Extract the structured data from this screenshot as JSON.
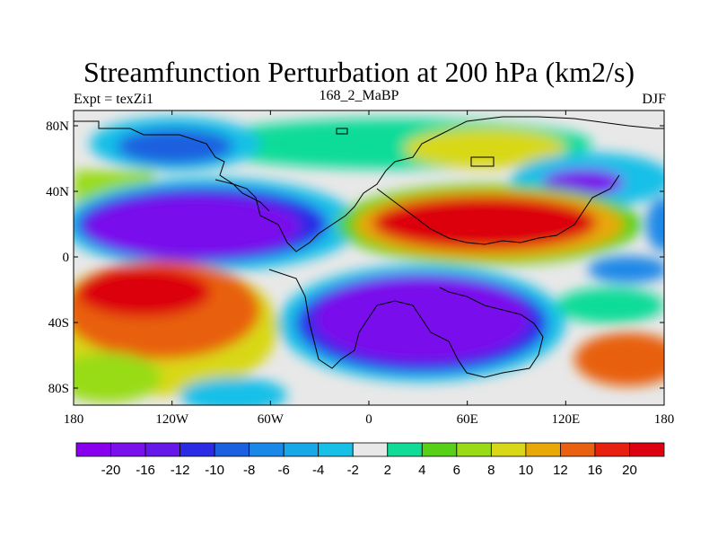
{
  "title": "Streamfunction Perturbation at 200 hPa (km2/s)",
  "left_string": "Expt = texZi1",
  "center_string": "168_2_MaBP",
  "right_string": "DJF",
  "map": {
    "x_ticks": [
      "180",
      "120W",
      "60W",
      "0",
      "60E",
      "120E",
      "180"
    ],
    "y_ticks": [
      "80N",
      "40N",
      "0",
      "40S",
      "80S"
    ],
    "background_color": "#e8e8e8"
  },
  "colorbar": {
    "labels": [
      "-20",
      "-16",
      "-12",
      "-10",
      "-8",
      "-6",
      "-4",
      "-2",
      "2",
      "4",
      "6",
      "8",
      "10",
      "12",
      "16",
      "20"
    ],
    "colors": [
      "#8800ee",
      "#7a10ec",
      "#6618e8",
      "#2b2be6",
      "#1a60e0",
      "#1a88e8",
      "#18a8e8",
      "#18c0e8",
      "#e8e8e8",
      "#10dc98",
      "#58d018",
      "#98dc18",
      "#d8d818",
      "#e8a808",
      "#e86010",
      "#e82010",
      "#dc0010"
    ]
  }
}
